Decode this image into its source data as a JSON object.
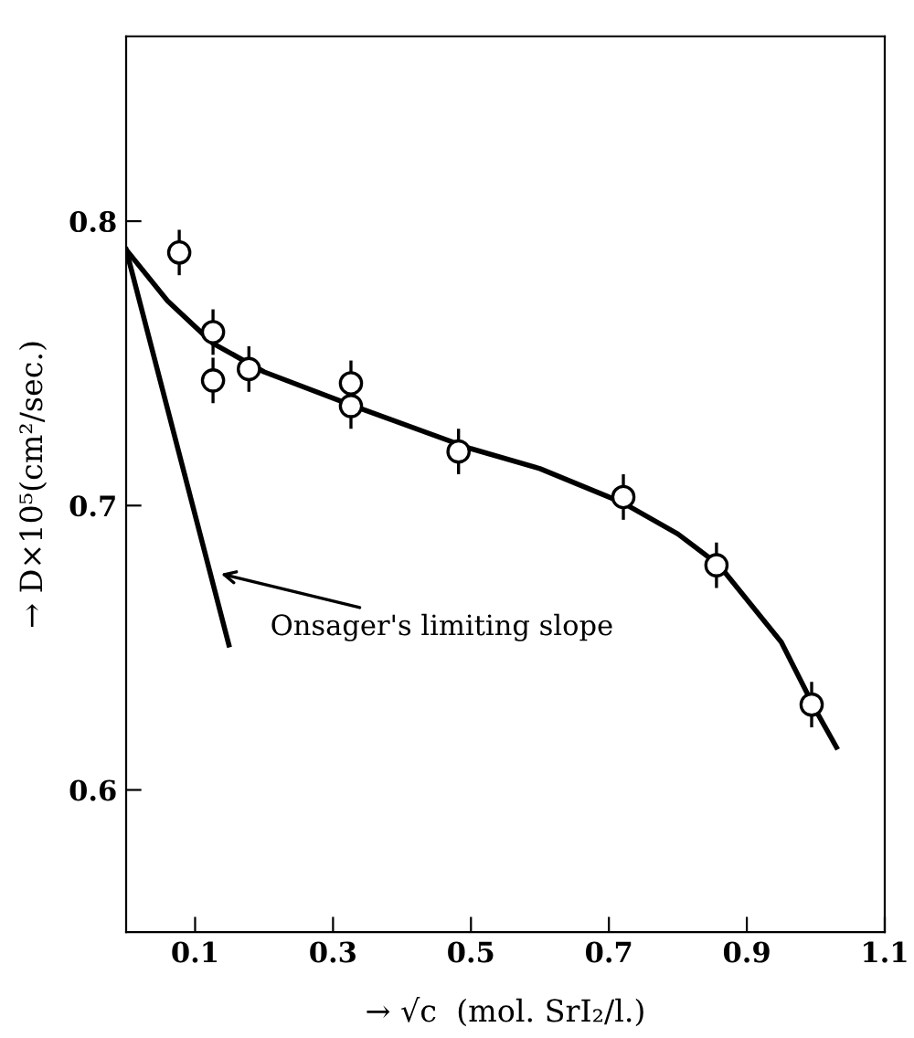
{
  "chart_data": {
    "type": "scatter",
    "xlabel": "→ √c  (mol. SrI₂/l.)",
    "ylabel": "→ D×10⁵(cm²/sec.)",
    "xlim": [
      0,
      1.1
    ],
    "ylim": [
      0.55,
      0.865
    ],
    "xticks": [
      0.1,
      0.3,
      0.5,
      0.7,
      0.9,
      1.1
    ],
    "yticks": [
      0.6,
      0.7,
      0.8
    ],
    "grid": false,
    "legend": false,
    "series": [
      {
        "color": "#000000",
        "marker": "circle",
        "x": [
          0.077,
          0.126,
          0.126,
          0.178,
          0.326,
          0.326,
          0.482,
          0.721,
          0.856,
          0.994
        ],
        "values": [
          0.789,
          0.761,
          0.744,
          0.748,
          0.743,
          0.735,
          0.719,
          0.703,
          0.679,
          0.63
        ],
        "errors": [
          0.008,
          0.008,
          0.008,
          0.008,
          0.008,
          0.008,
          0.008,
          0.008,
          0.008,
          0.008
        ]
      },
      {
        "type": "line",
        "color": "#000000",
        "marker": "none",
        "line_style": "solid",
        "x": [
          0,
          0.06,
          0.126,
          0.2,
          0.33,
          0.5,
          0.6,
          0.72,
          0.8,
          0.86,
          0.95,
          1.0,
          1.03
        ],
        "values": [
          0.79,
          0.772,
          0.757,
          0.747,
          0.735,
          0.72,
          0.713,
          0.701,
          0.69,
          0.679,
          0.652,
          0.628,
          0.615
        ]
      },
      {
        "type": "line",
        "color": "#000000",
        "marker": "none",
        "line_style": "solid",
        "x": [
          0,
          0.149
        ],
        "values": [
          0.79,
          0.651
        ]
      }
    ],
    "annotations": [
      "Onsager's limiting slope"
    ]
  }
}
